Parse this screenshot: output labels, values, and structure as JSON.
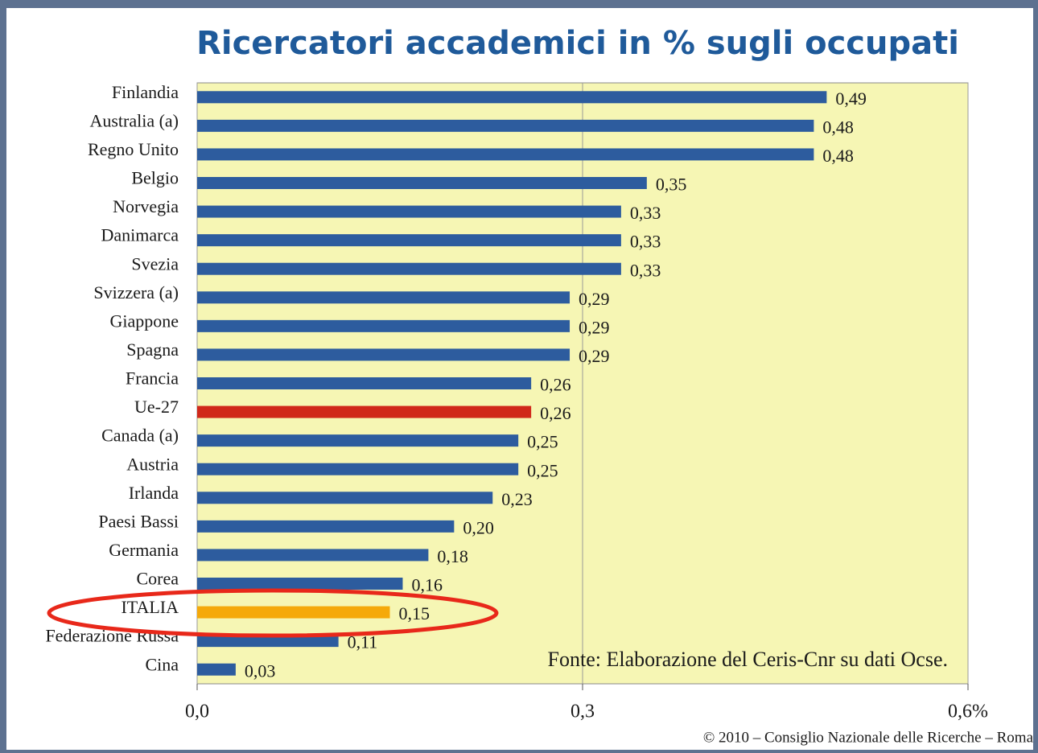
{
  "chart_data": {
    "type": "hbar",
    "title": "Ricercatori accademici in % sugli occupati",
    "categories": [
      "Finlandia",
      "Australia (a)",
      "Regno Unito",
      "Belgio",
      "Norvegia",
      "Danimarca",
      "Svezia",
      "Svizzera (a)",
      "Giappone",
      "Spagna",
      "Francia",
      "Ue-27",
      "Canada (a)",
      "Austria",
      "Irlanda",
      "Paesi Bassi",
      "Germania",
      "Corea",
      "ITALIA",
      "Federazione Russa",
      "Cina"
    ],
    "values": [
      0.49,
      0.48,
      0.48,
      0.35,
      0.33,
      0.33,
      0.33,
      0.29,
      0.29,
      0.29,
      0.26,
      0.26,
      0.25,
      0.25,
      0.23,
      0.2,
      0.18,
      0.16,
      0.15,
      0.11,
      0.03
    ],
    "value_labels": [
      "0,49",
      "0,48",
      "0,48",
      "0,35",
      "0,33",
      "0,33",
      "0,33",
      "0,29",
      "0,29",
      "0,29",
      "0,26",
      "0,26",
      "0,25",
      "0,25",
      "0,23",
      "0,20",
      "0,18",
      "0,16",
      "0,15",
      "0,11",
      "0,03"
    ],
    "colors": [
      "#2d5c9e",
      "#2d5c9e",
      "#2d5c9e",
      "#2d5c9e",
      "#2d5c9e",
      "#2d5c9e",
      "#2d5c9e",
      "#2d5c9e",
      "#2d5c9e",
      "#2d5c9e",
      "#2d5c9e",
      "#d0281a",
      "#2d5c9e",
      "#2d5c9e",
      "#2d5c9e",
      "#2d5c9e",
      "#2d5c9e",
      "#2d5c9e",
      "#f5a90a",
      "#2d5c9e",
      "#2d5c9e"
    ],
    "xlim": [
      0,
      0.6
    ],
    "xticks": [
      {
        "value": 0,
        "label": "0,0"
      },
      {
        "value": 0.3,
        "label": "0,3"
      },
      {
        "value": 0.6,
        "label": "0,6%"
      }
    ],
    "grid": true,
    "annotation": "Fonte: Elaborazione del Ceris-Cnr su dati Ocse.",
    "footer": "© 2010 – Consiglio Nazionale delle Ricerche – Roma"
  }
}
